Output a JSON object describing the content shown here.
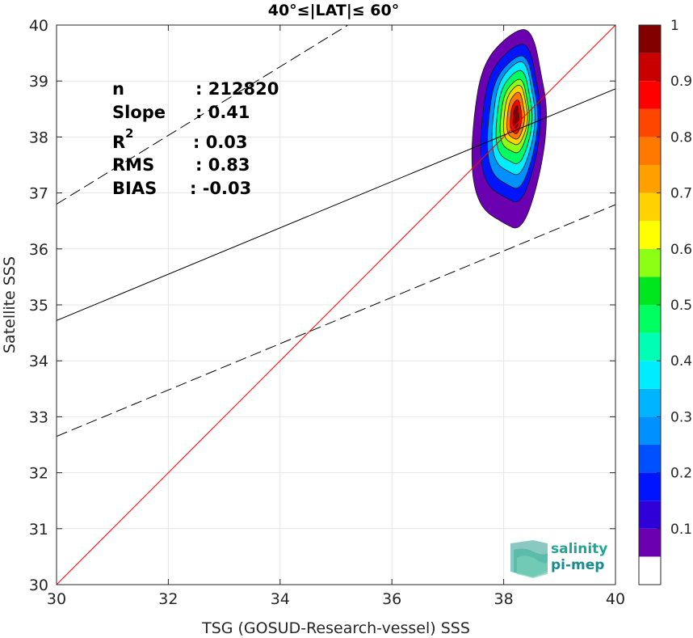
{
  "chart_data": {
    "type": "contour",
    "title": "40°≤|LAT|≤ 60°",
    "xlabel": "TSG (GOSUD-Research-vessel) SSS",
    "ylabel": "Satellite SSS",
    "xlim": [
      30,
      40
    ],
    "ylim": [
      30,
      40
    ],
    "xticks": [
      "30",
      "32",
      "34",
      "36",
      "38",
      "40"
    ],
    "yticks": [
      "30",
      "31",
      "32",
      "33",
      "34",
      "35",
      "36",
      "37",
      "38",
      "39",
      "40"
    ],
    "grid": true,
    "stats": {
      "n_label": "n",
      "n_value": ": 212820",
      "slope_label": "Slope",
      "slope_value": ": 0.41",
      "r2_label": "R",
      "r2_sup": "2",
      "r2_value": ": 0.03",
      "rms_label": "RMS",
      "rms_value": ": 0.83",
      "bias_label": "BIAS",
      "bias_value": ": -0.03"
    },
    "lines": {
      "identity": {
        "color": "#ff0000",
        "points": [
          [
            30,
            30
          ],
          [
            40,
            40
          ]
        ]
      },
      "fit": {
        "color": "#000000",
        "slope": 0.41,
        "points": [
          [
            30,
            34.72
          ],
          [
            40,
            38.86
          ]
        ]
      },
      "fit_upper": {
        "style": "dashed",
        "points": [
          [
            30,
            36.8
          ],
          [
            40,
            42.94
          ]
        ]
      },
      "fit_lower": {
        "style": "dashed",
        "points": [
          [
            30,
            32.65
          ],
          [
            40,
            36.79
          ]
        ]
      }
    },
    "density_peak": {
      "x": 38.22,
      "y": 38.35
    },
    "contour_levels": [
      {
        "level": 0.05,
        "x_min": 37.45,
        "x_max": 38.75,
        "y_min": 36.32,
        "y_max": 39.85
      },
      {
        "level": 0.15,
        "x_min": 37.6,
        "x_max": 38.65,
        "y_min": 36.8,
        "y_max": 39.6
      },
      {
        "level": 0.25,
        "x_min": 37.72,
        "x_max": 38.6,
        "y_min": 37.05,
        "y_max": 39.4
      },
      {
        "level": 0.35,
        "x_min": 37.8,
        "x_max": 38.55,
        "y_min": 37.3,
        "y_max": 39.3
      },
      {
        "level": 0.45,
        "x_min": 37.87,
        "x_max": 38.5,
        "y_min": 37.5,
        "y_max": 39.15
      },
      {
        "level": 0.55,
        "x_min": 37.94,
        "x_max": 38.45,
        "y_min": 37.7,
        "y_max": 39.0
      },
      {
        "level": 0.65,
        "x_min": 38.0,
        "x_max": 38.42,
        "y_min": 37.85,
        "y_max": 38.9
      },
      {
        "level": 0.75,
        "x_min": 38.06,
        "x_max": 38.37,
        "y_min": 37.95,
        "y_max": 38.78
      },
      {
        "level": 0.85,
        "x_min": 38.12,
        "x_max": 38.32,
        "y_min": 38.05,
        "y_max": 38.65
      },
      {
        "level": 0.95,
        "x_min": 38.17,
        "x_max": 38.27,
        "y_min": 38.15,
        "y_max": 38.55
      }
    ],
    "colorbar": {
      "range": [
        0,
        1
      ],
      "ticks": [
        "0.1",
        "0.2",
        "0.3",
        "0.4",
        "0.5",
        "0.6",
        "0.7",
        "0.8",
        "0.9",
        "1"
      ],
      "levels": [
        {
          "from": 0.0,
          "to": 0.05,
          "color": "#ffffff"
        },
        {
          "from": 0.05,
          "to": 0.1,
          "color": "#6a00b0"
        },
        {
          "from": 0.1,
          "to": 0.15,
          "color": "#3000d8"
        },
        {
          "from": 0.15,
          "to": 0.2,
          "color": "#0014ff"
        },
        {
          "from": 0.2,
          "to": 0.25,
          "color": "#0050ff"
        },
        {
          "from": 0.25,
          "to": 0.3,
          "color": "#0090ff"
        },
        {
          "from": 0.3,
          "to": 0.35,
          "color": "#00b4ff"
        },
        {
          "from": 0.35,
          "to": 0.4,
          "color": "#00ecff"
        },
        {
          "from": 0.4,
          "to": 0.45,
          "color": "#00ffb4"
        },
        {
          "from": 0.45,
          "to": 0.5,
          "color": "#00ff60"
        },
        {
          "from": 0.5,
          "to": 0.55,
          "color": "#00e61e"
        },
        {
          "from": 0.55,
          "to": 0.6,
          "color": "#8cff14"
        },
        {
          "from": 0.6,
          "to": 0.65,
          "color": "#ffff00"
        },
        {
          "from": 0.65,
          "to": 0.7,
          "color": "#ffd200"
        },
        {
          "from": 0.7,
          "to": 0.75,
          "color": "#ffa000"
        },
        {
          "from": 0.75,
          "to": 0.8,
          "color": "#ff7800"
        },
        {
          "from": 0.8,
          "to": 0.85,
          "color": "#ff4600"
        },
        {
          "from": 0.85,
          "to": 0.9,
          "color": "#ff0000"
        },
        {
          "from": 0.9,
          "to": 0.95,
          "color": "#c80000"
        },
        {
          "from": 0.95,
          "to": 1.0,
          "color": "#820000"
        }
      ]
    }
  },
  "logo": {
    "line1": "salinity",
    "line2": "pi-mep"
  }
}
